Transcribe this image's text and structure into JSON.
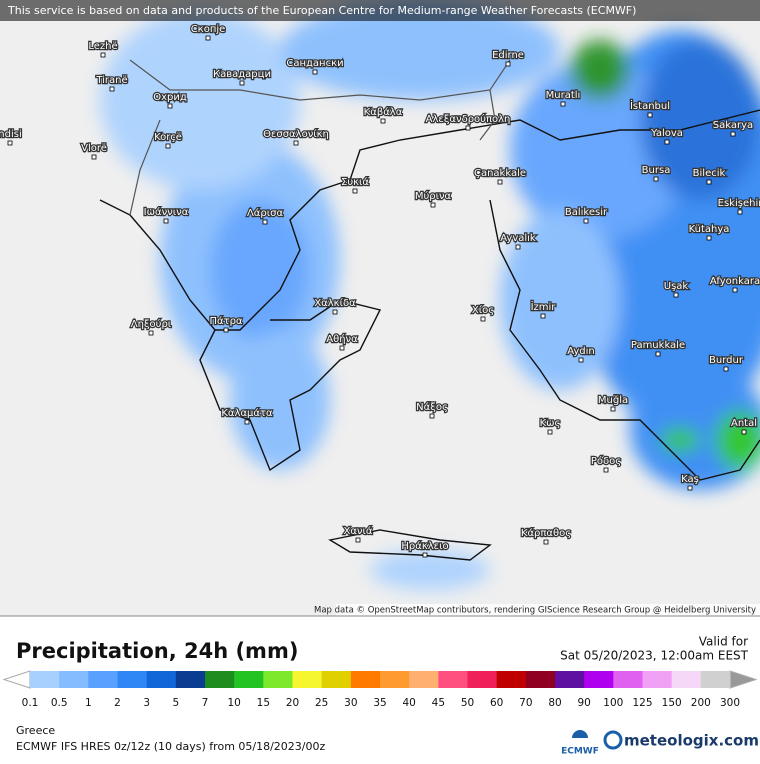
{
  "banner": "This service is based on data and products of the European Centre for Medium-range Weather Forecasts (ECMWF)",
  "cities": [
    "Lezhë",
    "Tiranë",
    "Скопје",
    "Охрид",
    "Кавадарци",
    "Сандански",
    "Edirne",
    "Muratlı",
    "İstanbul",
    "Sakarya",
    "Yalova",
    "Korçë",
    "Vlorë",
    "Καβάλα",
    "Αλεξανδρούπολη",
    "Θεσσαλονίκη",
    "ndisi",
    "Bursa",
    "Bilecik",
    "Çanakkale",
    "Συκιά",
    "Μύρινα",
    "Eskişehir",
    "Balıkesir",
    "Ιωάννινα",
    "Λάρισα",
    "Kütahya",
    "Ayvalık",
    "Afyonkara",
    "Uşak",
    "Χαλκίδα",
    "İzmir",
    "Χίος",
    "Πάτρα",
    "Ληξούρι",
    "Αθήνα",
    "Pamukkale",
    "Aydın",
    "Burdur",
    "Muğla",
    "Νάξος",
    "Καλαμάτα",
    "Κως",
    "Antal",
    "Ρόδος",
    "Kaş",
    "Χανιά",
    "Κάρπαθος",
    "Ηράκλειο"
  ],
  "attribution": "Map data © OpenStreetMap contributors, rendering GIScience Research Group @ Heidelberg University",
  "title": "Precipitation, 24h (mm)",
  "valid_label": "Valid for",
  "valid_time": "Sat 05/20/2023, 12:00am EEST",
  "legend": {
    "ticks": [
      0.1,
      0.5,
      1,
      2,
      3,
      5,
      7,
      10,
      15,
      20,
      25,
      30,
      35,
      40,
      45,
      50,
      60,
      70,
      80,
      90,
      100,
      125,
      150,
      200,
      300
    ],
    "colors": [
      "#a8d0ff",
      "#84bcff",
      "#5aa0ff",
      "#2f86f5",
      "#1366d8",
      "#0a3d91",
      "#1e8c1e",
      "#22c322",
      "#7ee82a",
      "#f5f530",
      "#e0d000",
      "#ff7b00",
      "#ff9a30",
      "#ffb070",
      "#ff5080",
      "#f0205a",
      "#c00000",
      "#900020",
      "#6010a0",
      "#b000f0",
      "#e060f0",
      "#f0a0f5",
      "#f5d8f8",
      "#d0d0d0"
    ]
  },
  "region": "Greece",
  "model": "ECMWF IFS HRES 0z/12z (10 days) from  05/18/2023/00z",
  "ecmwf_logo": "ECMWF",
  "brand": "meteologix.com"
}
